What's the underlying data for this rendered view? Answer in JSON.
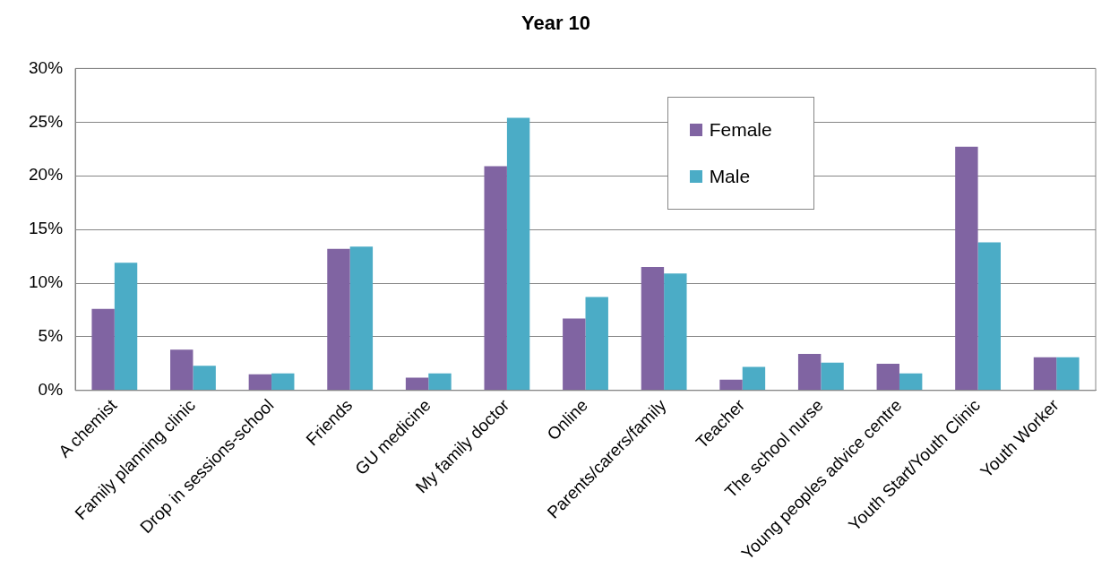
{
  "chart_data": {
    "type": "bar",
    "title": "Year 10",
    "categories": [
      "A chemist",
      "Family planning clinic",
      "Drop in sessions-school",
      "Friends",
      "GU medicine",
      "My family doctor",
      "Online",
      "Parents/carers/family",
      "Teacher",
      "The school nurse",
      "Young peoples advice centre",
      "Youth Start/Youth Clinic",
      "Youth Worker"
    ],
    "series": [
      {
        "name": "Female",
        "color": "#8064a2",
        "values": [
          7.6,
          3.8,
          1.5,
          13.2,
          1.2,
          20.9,
          6.7,
          11.5,
          1.0,
          3.4,
          2.5,
          22.7,
          3.1
        ]
      },
      {
        "name": "Male",
        "color": "#4bacc6",
        "values": [
          11.9,
          2.3,
          1.6,
          13.4,
          1.6,
          25.4,
          8.7,
          10.9,
          2.2,
          2.6,
          1.6,
          13.8,
          3.1
        ]
      }
    ],
    "ylim": [
      0,
      30
    ],
    "yticks": [
      {
        "value": 0,
        "label": "0%"
      },
      {
        "value": 5,
        "label": "5%"
      },
      {
        "value": 10,
        "label": "10%"
      },
      {
        "value": 15,
        "label": "15%"
      },
      {
        "value": 20,
        "label": "20%"
      },
      {
        "value": 25,
        "label": "25%"
      },
      {
        "value": 30,
        "label": "30%"
      }
    ],
    "grid": "y",
    "legend": "top"
  }
}
